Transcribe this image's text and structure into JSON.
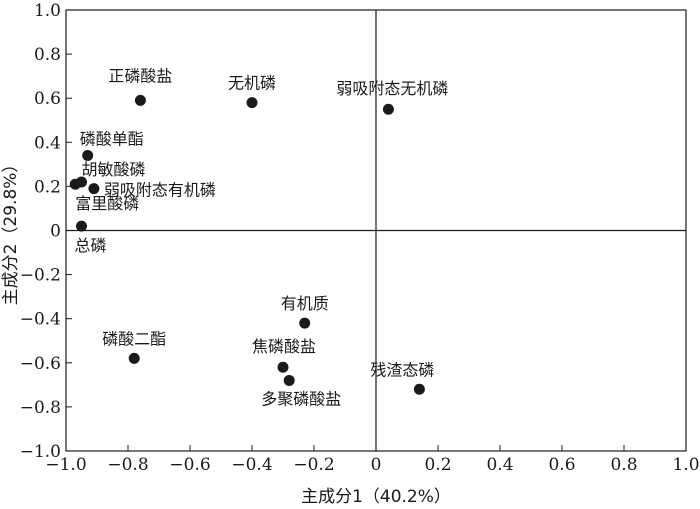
{
  "chart_data": {
    "type": "scatter",
    "xlabel": "主成分1（40.2%）",
    "ylabel": "主成分2（29.8%）",
    "xlim": [
      -1.0,
      1.0
    ],
    "ylim": [
      -1.0,
      1.0
    ],
    "x_ticks": [
      "−1.0",
      "−0.8",
      "−0.6",
      "−0.4",
      "−0.2",
      "0",
      "0.2",
      "0.4",
      "0.6",
      "0.8",
      "1.0"
    ],
    "y_ticks": [
      "1.0",
      "0.8",
      "0.6",
      "0.4",
      "0.2",
      "0",
      "−0.2",
      "−0.4",
      "−0.6",
      "−0.8",
      "−1.0"
    ],
    "grid": false,
    "reference_lines": {
      "x": 0,
      "y": 0
    },
    "marker_color": "#1a1a1a",
    "points": [
      {
        "label": "正磷酸盐",
        "x": -0.76,
        "y": 0.59
      },
      {
        "label": "无机磷",
        "x": -0.4,
        "y": 0.58
      },
      {
        "label": "弱吸附态无机磷",
        "x": 0.04,
        "y": 0.55
      },
      {
        "label": "磷酸单酯",
        "x": -0.93,
        "y": 0.34
      },
      {
        "label": "胡敏酸磷",
        "x": -0.95,
        "y": 0.22
      },
      {
        "label": "弱吸附态有机磷",
        "x": -0.91,
        "y": 0.19
      },
      {
        "label": "富里酸磷",
        "x": -0.97,
        "y": 0.21
      },
      {
        "label": "总磷",
        "x": -0.95,
        "y": 0.02
      },
      {
        "label": "有机质",
        "x": -0.23,
        "y": -0.42
      },
      {
        "label": "磷酸二酯",
        "x": -0.78,
        "y": -0.58
      },
      {
        "label": "焦磷酸盐",
        "x": -0.3,
        "y": -0.62
      },
      {
        "label": "多聚磷酸盐",
        "x": -0.28,
        "y": -0.68
      },
      {
        "label": "残渣态磷",
        "x": 0.14,
        "y": -0.72
      }
    ]
  }
}
